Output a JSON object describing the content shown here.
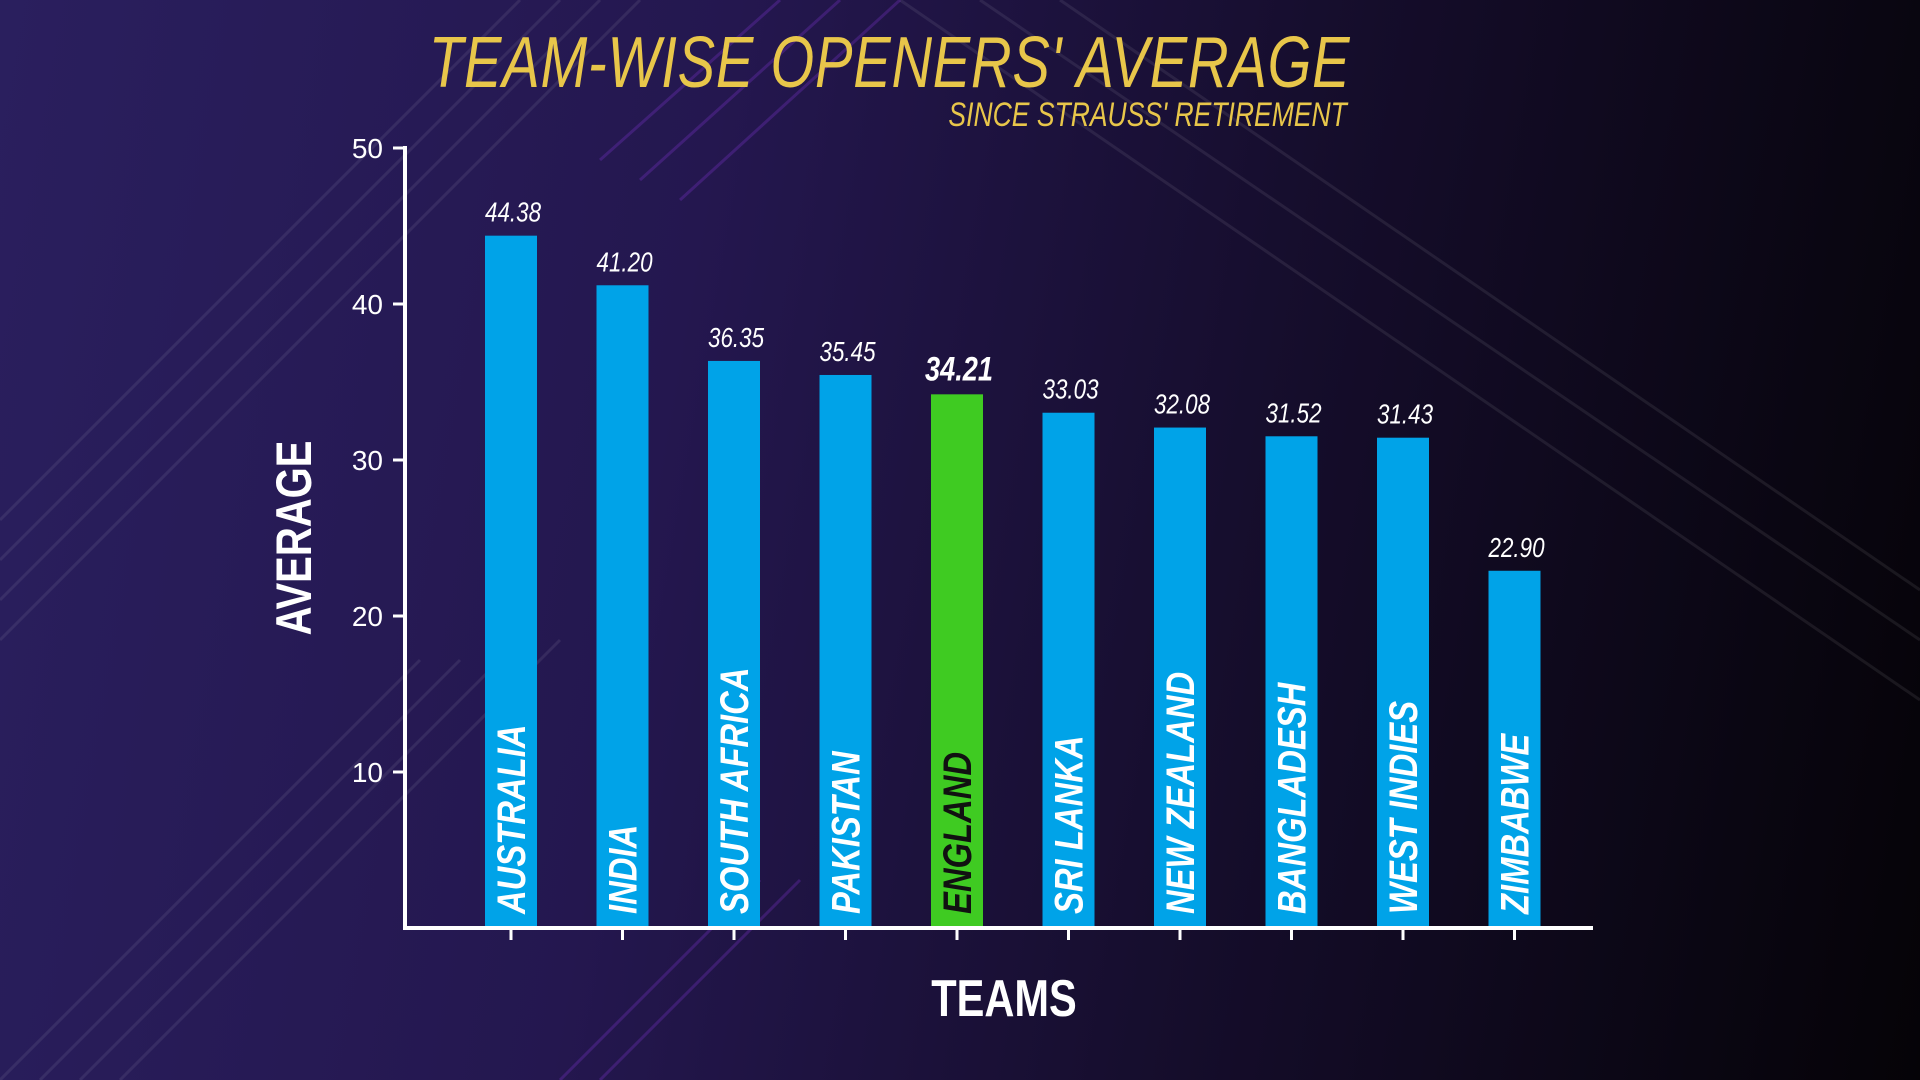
{
  "chart_data": {
    "type": "bar",
    "title": "TEAM-WISE OPENERS' AVERAGE",
    "subtitle": "SINCE STRAUSS' RETIREMENT",
    "xlabel": "TEAMS",
    "ylabel": "AVERAGE",
    "ylim": [
      0,
      50
    ],
    "yticks": [
      10,
      20,
      30,
      40,
      50
    ],
    "categories": [
      "AUSTRALIA",
      "INDIA",
      "SOUTH AFRICA",
      "PAKISTAN",
      "ENGLAND",
      "SRI LANKA",
      "NEW ZEALAND",
      "BANGLADESH",
      "WEST INDIES",
      "ZIMBABWE"
    ],
    "values": [
      44.38,
      41.2,
      36.35,
      35.45,
      34.21,
      33.03,
      32.08,
      31.52,
      31.43,
      22.9
    ],
    "value_labels": [
      "44.38",
      "41.20",
      "36.35",
      "35.45",
      "34.21",
      "33.03",
      "32.08",
      "31.52",
      "31.43",
      "22.90"
    ],
    "highlight": "ENGLAND",
    "colors": {
      "bar": "#00a3e8",
      "highlight": "#3fcb22",
      "text": "#ffffff",
      "title": "#e8c64a"
    },
    "grid": false,
    "legend": "none"
  }
}
